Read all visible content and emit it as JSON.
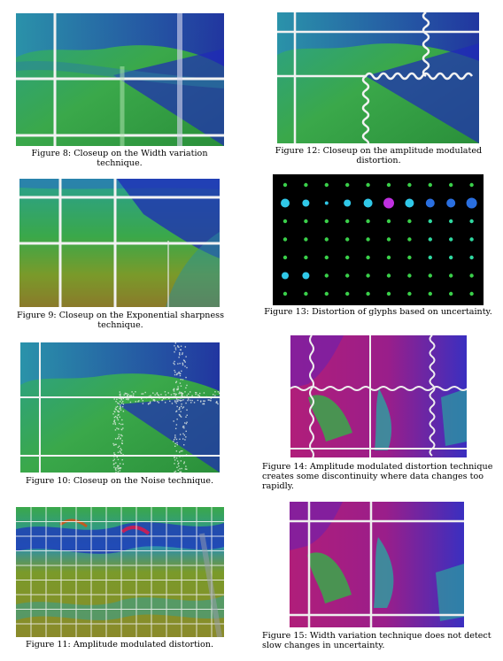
{
  "figures": [
    {
      "id": "fig8",
      "caption": "Figure 8: Closeup on the Width variation technique."
    },
    {
      "id": "fig12",
      "caption": "Figure 12: Closeup on the amplitude modulated distortion."
    },
    {
      "id": "fig9",
      "caption": "Figure 9: Closeup on the Exponential sharpness technique."
    },
    {
      "id": "fig13",
      "caption": "Figure 13: Distortion of glyphs based on uncertainty."
    },
    {
      "id": "fig10",
      "caption": "Figure 10: Closeup on the Noise technique."
    },
    {
      "id": "fig14",
      "caption": "Figure 14: Amplitude modulated distortion technique creates some discontinuity where data changes too rapidly."
    },
    {
      "id": "fig11",
      "caption": "Figure 11: Amplitude modulated distortion."
    },
    {
      "id": "fig15",
      "caption": "Figure 15: Width variation technique does not detect slow changes in uncertainty."
    }
  ],
  "colors": {
    "green": "#2fa83a",
    "teal": "#2aa2a0",
    "blue": "#2a3fc9",
    "navy": "#1a1fa8",
    "olive": "#8a8a2a",
    "magenta": "#c0208a",
    "purple": "#7a1fb8",
    "grid": "#f2f2f2"
  }
}
